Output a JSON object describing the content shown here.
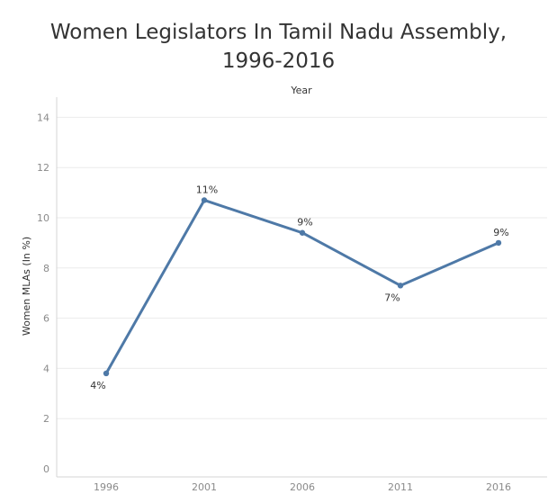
{
  "page": {
    "title_line1": "Women Legislators In Tamil Nadu Assembly,",
    "title_line2": "1996-2016"
  },
  "colors": {
    "series": "#4e79a7",
    "grid": "#ebebeb"
  },
  "chart_data": {
    "type": "line",
    "title": "Women Legislators In Tamil Nadu Assembly, 1996-2016",
    "xlabel": "Year",
    "ylabel": "Women MLAs (In %)",
    "x_axis_position": "top",
    "categories": [
      "1996",
      "2001",
      "2006",
      "2011",
      "2016"
    ],
    "values": [
      3.8,
      10.7,
      9.4,
      7.3,
      9.0
    ],
    "data_labels": [
      "4%",
      "11%",
      "9%",
      "7%",
      "9%"
    ],
    "yticks": [
      0,
      2,
      4,
      6,
      8,
      10,
      12,
      14
    ],
    "ylim": [
      0,
      15
    ],
    "grid": true
  }
}
